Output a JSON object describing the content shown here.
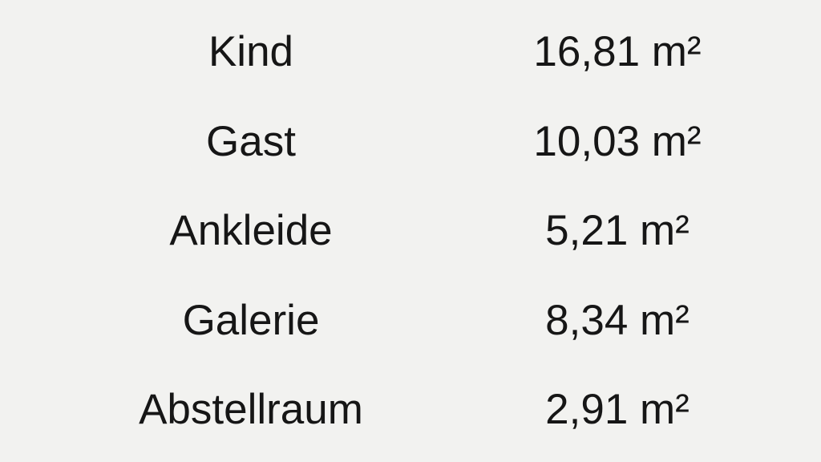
{
  "document": {
    "type": "room-area-table",
    "language": "de",
    "unit": "m²"
  },
  "colors": {
    "background": "#f2f2f0",
    "text": "#161616"
  },
  "table": {
    "rows": [
      {
        "label": "Kind",
        "value": "16,81 m²"
      },
      {
        "label": "Gast",
        "value": "10,03 m²"
      },
      {
        "label": "Ankleide",
        "value": "5,21 m²"
      },
      {
        "label": "Galerie",
        "value": "8,34 m²"
      },
      {
        "label": "Abstellraum",
        "value": "2,91 m²"
      }
    ]
  },
  "chart_data": {
    "type": "table",
    "title": "",
    "categories": [
      "Kind",
      "Gast",
      "Ankleide",
      "Galerie",
      "Abstellraum"
    ],
    "values": [
      16.81,
      10.03,
      5.21,
      8.34,
      2.91
    ],
    "value_unit": "m²"
  }
}
